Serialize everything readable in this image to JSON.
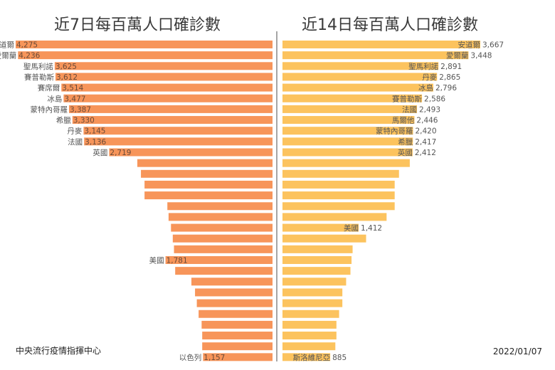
{
  "chart_data": [
    {
      "type": "bar",
      "orientation": "horizontal",
      "direction": "right-to-left",
      "title": "近7日每百萬人口確診數",
      "color": "#f7955a",
      "xlim": [
        0,
        4275
      ],
      "bars": [
        {
          "label": "安道爾",
          "value": 4275,
          "shown": true
        },
        {
          "label": "愛爾蘭",
          "value": 4236,
          "shown": true
        },
        {
          "label": "聖馬利諾",
          "value": 3625,
          "shown": true
        },
        {
          "label": "賽普勒斯",
          "value": 3612,
          "shown": true
        },
        {
          "label": "賽席爾",
          "value": 3514,
          "shown": true
        },
        {
          "label": "冰島",
          "value": 3477,
          "shown": true
        },
        {
          "label": "蒙特內哥羅",
          "value": 3387,
          "shown": true
        },
        {
          "label": "希臘",
          "value": 3330,
          "shown": true
        },
        {
          "label": "丹麥",
          "value": 3145,
          "shown": true
        },
        {
          "label": "法國",
          "value": 3136,
          "shown": true
        },
        {
          "label": "英國",
          "value": 2719,
          "shown": true
        },
        {
          "label": "",
          "value": 2250,
          "shown": false
        },
        {
          "label": "",
          "value": 2190,
          "shown": false
        },
        {
          "label": "",
          "value": 2130,
          "shown": false
        },
        {
          "label": "",
          "value": 2130,
          "shown": false
        },
        {
          "label": "",
          "value": 1750,
          "shown": false
        },
        {
          "label": "",
          "value": 1730,
          "shown": false
        },
        {
          "label": "",
          "value": 1690,
          "shown": false
        },
        {
          "label": "",
          "value": 1660,
          "shown": false
        },
        {
          "label": "",
          "value": 1640,
          "shown": false
        },
        {
          "label": "美國",
          "value": 1781,
          "shown": true
        },
        {
          "label": "",
          "value": 1620,
          "shown": false
        },
        {
          "label": "",
          "value": 1350,
          "shown": false
        },
        {
          "label": "",
          "value": 1290,
          "shown": false
        },
        {
          "label": "",
          "value": 1260,
          "shown": false
        },
        {
          "label": "",
          "value": 1230,
          "shown": false
        },
        {
          "label": "",
          "value": 1180,
          "shown": false
        },
        {
          "label": "",
          "value": 1170,
          "shown": false
        },
        {
          "label": "",
          "value": 1170,
          "shown": false
        },
        {
          "label": "以色列",
          "value": 1157,
          "shown": true
        }
      ]
    },
    {
      "type": "bar",
      "orientation": "horizontal",
      "direction": "left-to-right",
      "title": "近14日每百萬人口確診數",
      "color": "#fcc35e",
      "xlim": [
        0,
        3667
      ],
      "bars": [
        {
          "label": "安道爾",
          "value": 3667,
          "shown": true
        },
        {
          "label": "愛爾蘭",
          "value": 3448,
          "shown": true
        },
        {
          "label": "聖馬利諾",
          "value": 2891,
          "shown": true
        },
        {
          "label": "丹麥",
          "value": 2865,
          "shown": true
        },
        {
          "label": "冰島",
          "value": 2796,
          "shown": true
        },
        {
          "label": "賽普勒斯",
          "value": 2586,
          "shown": true
        },
        {
          "label": "法國",
          "value": 2493,
          "shown": true
        },
        {
          "label": "馬爾他",
          "value": 2446,
          "shown": true
        },
        {
          "label": "蒙特內哥羅",
          "value": 2420,
          "shown": true
        },
        {
          "label": "希臘",
          "value": 2417,
          "shown": true
        },
        {
          "label": "英國",
          "value": 2412,
          "shown": true
        },
        {
          "label": "",
          "value": 2360,
          "shown": false
        },
        {
          "label": "",
          "value": 2160,
          "shown": false
        },
        {
          "label": "",
          "value": 2080,
          "shown": false
        },
        {
          "label": "",
          "value": 2080,
          "shown": false
        },
        {
          "label": "",
          "value": 2080,
          "shown": false
        },
        {
          "label": "",
          "value": 1930,
          "shown": false
        },
        {
          "label": "美國",
          "value": 1412,
          "shown": true
        },
        {
          "label": "",
          "value": 1550,
          "shown": false
        },
        {
          "label": "",
          "value": 1300,
          "shown": false
        },
        {
          "label": "",
          "value": 1280,
          "shown": false
        },
        {
          "label": "",
          "value": 1260,
          "shown": false
        },
        {
          "label": "",
          "value": 1180,
          "shown": false
        },
        {
          "label": "",
          "value": 1110,
          "shown": false
        },
        {
          "label": "",
          "value": 1110,
          "shown": false
        },
        {
          "label": "",
          "value": 1050,
          "shown": false
        },
        {
          "label": "",
          "value": 1000,
          "shown": false
        },
        {
          "label": "",
          "value": 1000,
          "shown": false
        },
        {
          "label": "",
          "value": 980,
          "shown": false
        },
        {
          "label": "斯洛維尼亞",
          "value": 885,
          "shown": true
        }
      ]
    }
  ],
  "footer": {
    "source": "中央流行疫情指揮中心",
    "date": "2022/01/07"
  }
}
